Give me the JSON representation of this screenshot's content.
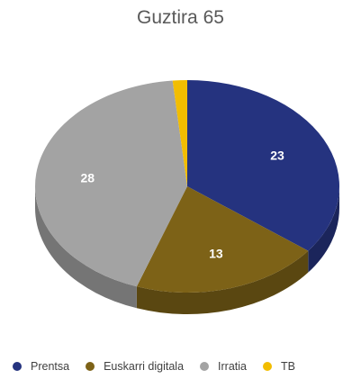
{
  "chart_data": {
    "type": "pie",
    "title": "Guztira 65",
    "style": "3d",
    "categories": [
      "Prentsa",
      "Euskarri digitala",
      "Irratia",
      "TB"
    ],
    "values": [
      23,
      13,
      28,
      1
    ],
    "data_labels": [
      "23",
      "13",
      "28",
      ""
    ],
    "colors": [
      "#25337f",
      "#7d6217",
      "#a3a3a3",
      "#f2bd00"
    ],
    "legend_position": "bottom"
  }
}
